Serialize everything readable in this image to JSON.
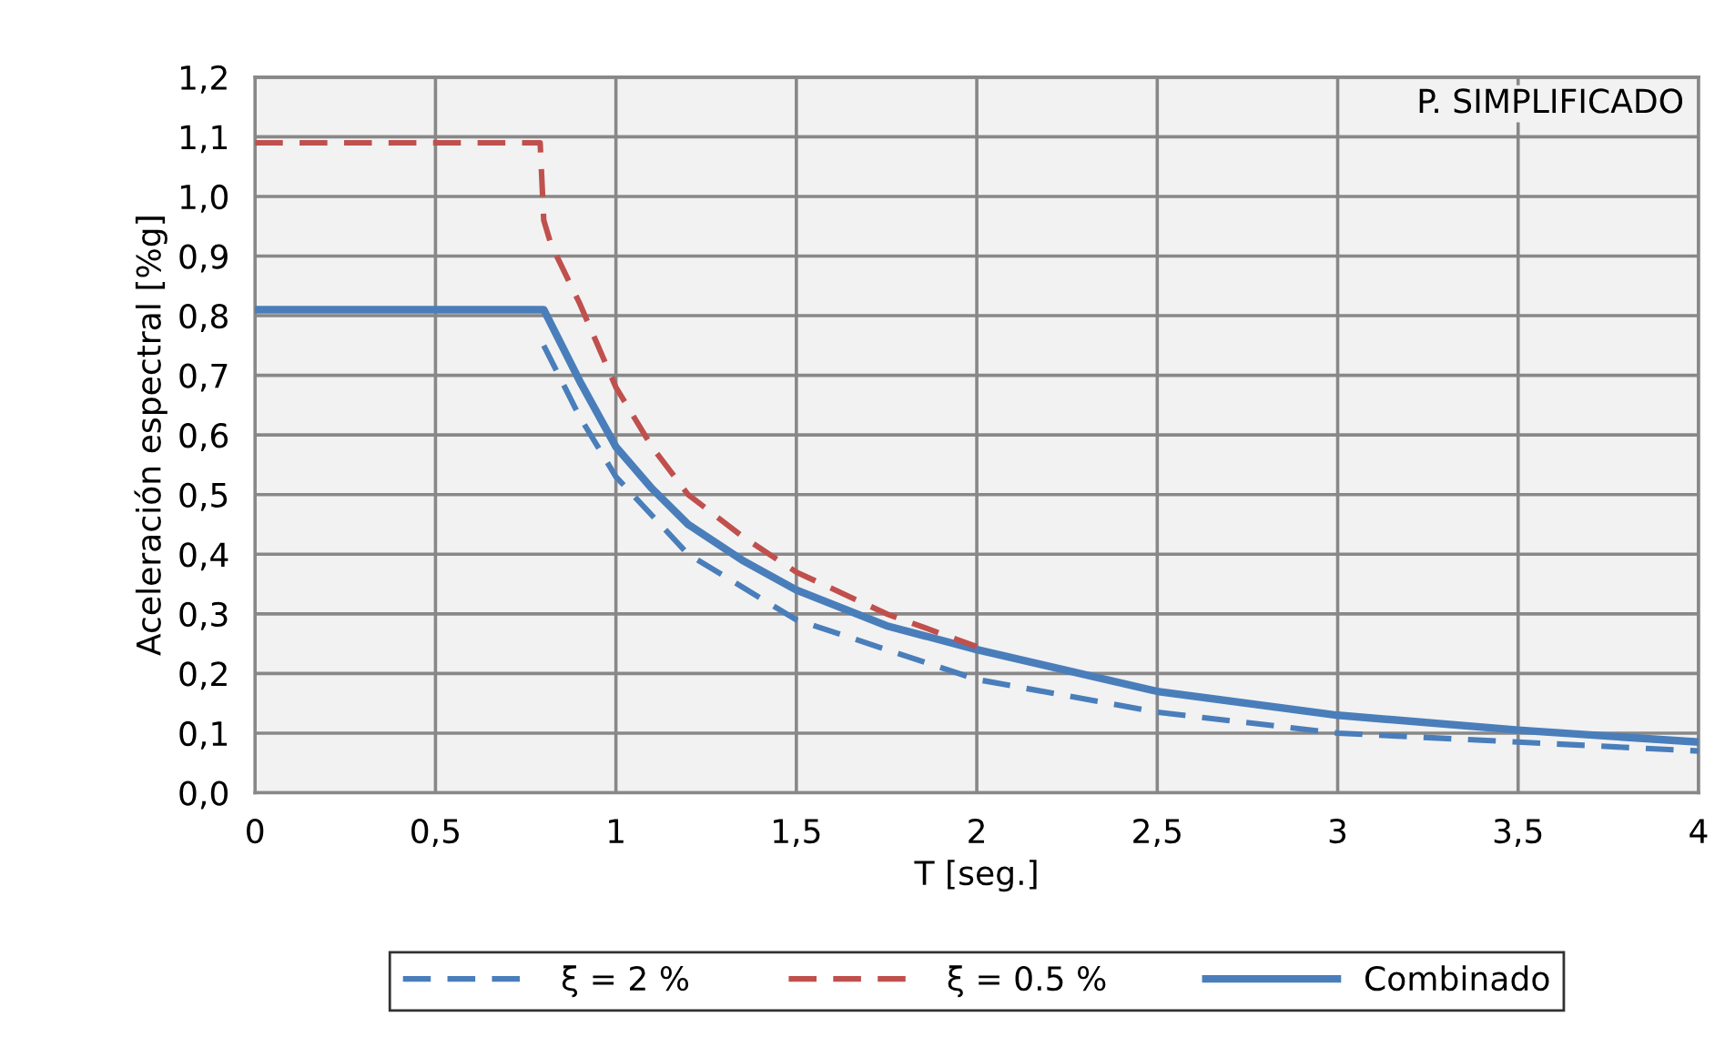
{
  "chart_data": {
    "type": "line",
    "xlabel": "T [seg.]",
    "ylabel": "Aceleración espectral [%g]",
    "annotations": [
      "P. SIMPLIFICADO"
    ],
    "xlim": [
      0,
      4
    ],
    "ylim": [
      0,
      1.2
    ],
    "xticks": [
      0,
      {
        "value": 0.5,
        "label": "0,5"
      },
      1,
      {
        "value": 1.5,
        "label": "1,5"
      },
      2,
      {
        "value": 2.5,
        "label": "2,5"
      },
      3,
      {
        "value": 3.5,
        "label": "3,5"
      },
      4
    ],
    "yticks": [
      {
        "value": 0,
        "label": "0,0"
      },
      {
        "value": 0.1,
        "label": "0,1"
      },
      {
        "value": 0.2,
        "label": "0,2"
      },
      {
        "value": 0.3,
        "label": "0,3"
      },
      {
        "value": 0.4,
        "label": "0,4"
      },
      {
        "value": 0.5,
        "label": "0,5"
      },
      {
        "value": 0.6,
        "label": "0,6"
      },
      {
        "value": 0.7,
        "label": "0,7"
      },
      {
        "value": 0.8,
        "label": "0,8"
      },
      {
        "value": 0.9,
        "label": "0,9"
      },
      {
        "value": 1.0,
        "label": "1,0"
      },
      {
        "value": 1.1,
        "label": "1,1"
      },
      {
        "value": 1.2,
        "label": "1,2"
      }
    ],
    "grid": true,
    "legend": "bottom",
    "marker": "none",
    "series": [
      {
        "name": "ξ = 2 %",
        "color": "#4a7ebb",
        "line_style": "dashed",
        "x": [
          0.8,
          0.9,
          1.0,
          1.2,
          1.5,
          2.0,
          2.5,
          3.0,
          3.5,
          4.0
        ],
        "values": [
          0.75,
          0.63,
          0.53,
          0.4,
          0.29,
          0.19,
          0.135,
          0.1,
          0.085,
          0.07
        ]
      },
      {
        "name": "ξ = 0.5 %",
        "color": "#c0504d",
        "line_style": "dashed",
        "x": [
          0,
          0.79,
          0.8,
          0.82,
          0.9,
          1.0,
          1.1,
          1.2,
          1.35,
          1.5,
          1.75,
          2.0
        ],
        "values": [
          1.09,
          1.09,
          0.96,
          0.92,
          0.82,
          0.68,
          0.58,
          0.5,
          0.43,
          0.37,
          0.3,
          0.245
        ]
      },
      {
        "name": "Combinado",
        "color": "#4a7ebb",
        "line_style": "solid",
        "x": [
          0,
          0.8,
          0.9,
          1.0,
          1.1,
          1.2,
          1.35,
          1.5,
          1.75,
          2.0,
          2.5,
          3.0,
          3.5,
          4.0
        ],
        "values": [
          0.81,
          0.81,
          0.69,
          0.58,
          0.51,
          0.45,
          0.39,
          0.34,
          0.28,
          0.24,
          0.17,
          0.13,
          0.105,
          0.085
        ]
      }
    ]
  }
}
